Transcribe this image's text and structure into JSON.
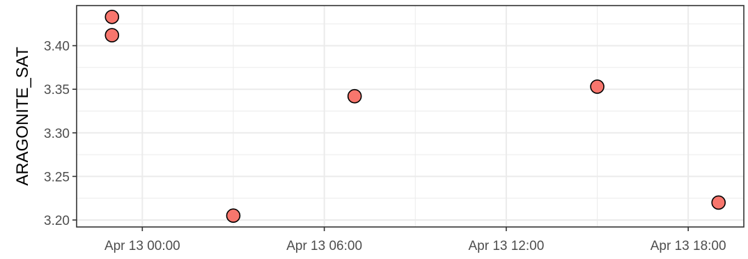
{
  "chart_data": {
    "type": "scatter",
    "title": "",
    "xlabel": "",
    "ylabel": "ARAGONITE_SAT",
    "x_type": "datetime",
    "xlim": [
      "2023-04-12T21:50:00",
      "2023-04-13T19:50:00"
    ],
    "ylim": [
      3.192,
      3.446
    ],
    "x_ticks": [
      {
        "value": "2023-04-13T00:00:00",
        "label": "Apr 13 00:00"
      },
      {
        "value": "2023-04-13T06:00:00",
        "label": "Apr 13 06:00"
      },
      {
        "value": "2023-04-13T12:00:00",
        "label": "Apr 13 12:00"
      },
      {
        "value": "2023-04-13T18:00:00",
        "label": "Apr 13 18:00"
      }
    ],
    "x_minor_ticks": [
      "2023-04-13T03:00:00",
      "2023-04-13T09:00:00",
      "2023-04-13T15:00:00"
    ],
    "y_ticks": [
      {
        "value": 3.2,
        "label": "3.20"
      },
      {
        "value": 3.25,
        "label": "3.25"
      },
      {
        "value": 3.3,
        "label": "3.30"
      },
      {
        "value": 3.35,
        "label": "3.35"
      },
      {
        "value": 3.4,
        "label": "3.40"
      }
    ],
    "y_minor_ticks": [
      3.225,
      3.275,
      3.325,
      3.375,
      3.425
    ],
    "grid": true,
    "legend": "none",
    "point_fill": "#F8766D",
    "point_stroke": "#000000",
    "panel_border": "#333333",
    "grid_color": "#ebebeb",
    "points": [
      {
        "x": "2023-04-12T23:00:00",
        "y": 3.433
      },
      {
        "x": "2023-04-12T23:00:00",
        "y": 3.412
      },
      {
        "x": "2023-04-13T03:00:00",
        "y": 3.205
      },
      {
        "x": "2023-04-13T07:00:00",
        "y": 3.342
      },
      {
        "x": "2023-04-13T15:00:00",
        "y": 3.353
      },
      {
        "x": "2023-04-13T19:00:00",
        "y": 3.22
      }
    ]
  }
}
